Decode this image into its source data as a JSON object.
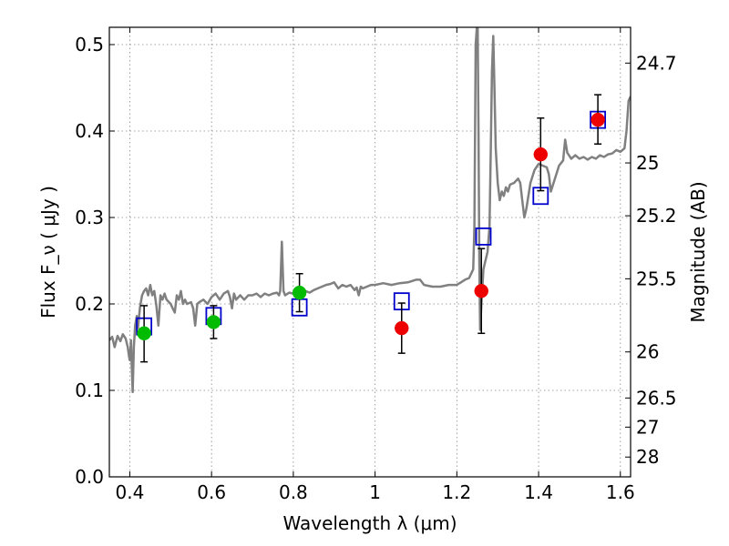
{
  "chart_data": {
    "type": "scatter",
    "xlabel": "Wavelength  λ (μm)",
    "ylabel": "Flux  F_ν  ( μJy )",
    "ylabel_right": "Magnitude (AB)",
    "xlim": [
      0.35,
      1.625
    ],
    "ylim": [
      0.0,
      0.52
    ],
    "grid": true,
    "x_ticks": [
      {
        "value": 0.4,
        "label": "0.4"
      },
      {
        "value": 0.6,
        "label": "0.6"
      },
      {
        "value": 0.8,
        "label": "0.8"
      },
      {
        "value": 1.0,
        "label": "1"
      },
      {
        "value": 1.2,
        "label": "1.2"
      },
      {
        "value": 1.4,
        "label": "1.4"
      },
      {
        "value": 1.6,
        "label": "1.6"
      }
    ],
    "y_ticks": [
      {
        "value": 0.0,
        "label": "0.0"
      },
      {
        "value": 0.1,
        "label": "0.1"
      },
      {
        "value": 0.2,
        "label": "0.2"
      },
      {
        "value": 0.3,
        "label": "0.3"
      },
      {
        "value": 0.4,
        "label": "0.4"
      },
      {
        "value": 0.5,
        "label": "0.5"
      }
    ],
    "right_ticks": [
      {
        "flux": 0.4786,
        "label": "24.7"
      },
      {
        "flux": 0.3631,
        "label": "25"
      },
      {
        "flux": 0.302,
        "label": "25.2"
      },
      {
        "flux": 0.2291,
        "label": "25.5"
      },
      {
        "flux": 0.1445,
        "label": "26"
      },
      {
        "flux": 0.0912,
        "label": "26.5"
      },
      {
        "flux": 0.0575,
        "label": "27"
      },
      {
        "flux": 0.0229,
        "label": "28"
      }
    ],
    "series": [
      {
        "kind": "line",
        "color": "#808080",
        "points": [
          [
            0.35,
            0.158
          ],
          [
            0.357,
            0.162
          ],
          [
            0.363,
            0.15
          ],
          [
            0.37,
            0.163
          ],
          [
            0.377,
            0.157
          ],
          [
            0.383,
            0.165
          ],
          [
            0.39,
            0.16
          ],
          [
            0.395,
            0.15
          ],
          [
            0.398,
            0.14
          ],
          [
            0.4,
            0.135
          ],
          [
            0.403,
            0.158
          ],
          [
            0.405,
            0.125
          ],
          [
            0.407,
            0.098
          ],
          [
            0.41,
            0.15
          ],
          [
            0.413,
            0.175
          ],
          [
            0.417,
            0.186
          ],
          [
            0.42,
            0.172
          ],
          [
            0.425,
            0.196
          ],
          [
            0.43,
            0.21
          ],
          [
            0.435,
            0.215
          ],
          [
            0.44,
            0.218
          ],
          [
            0.445,
            0.21
          ],
          [
            0.45,
            0.222
          ],
          [
            0.455,
            0.21
          ],
          [
            0.46,
            0.215
          ],
          [
            0.465,
            0.198
          ],
          [
            0.47,
            0.175
          ],
          [
            0.475,
            0.21
          ],
          [
            0.48,
            0.205
          ],
          [
            0.485,
            0.212
          ],
          [
            0.49,
            0.205
          ],
          [
            0.5,
            0.2
          ],
          [
            0.505,
            0.195
          ],
          [
            0.51,
            0.19
          ],
          [
            0.515,
            0.21
          ],
          [
            0.52,
            0.205
          ],
          [
            0.525,
            0.215
          ],
          [
            0.53,
            0.2
          ],
          [
            0.535,
            0.205
          ],
          [
            0.54,
            0.2
          ],
          [
            0.55,
            0.202
          ],
          [
            0.555,
            0.195
          ],
          [
            0.56,
            0.175
          ],
          [
            0.565,
            0.2
          ],
          [
            0.57,
            0.202
          ],
          [
            0.58,
            0.205
          ],
          [
            0.59,
            0.2
          ],
          [
            0.6,
            0.208
          ],
          [
            0.61,
            0.212
          ],
          [
            0.62,
            0.205
          ],
          [
            0.63,
            0.212
          ],
          [
            0.64,
            0.215
          ],
          [
            0.645,
            0.208
          ],
          [
            0.65,
            0.195
          ],
          [
            0.655,
            0.212
          ],
          [
            0.66,
            0.205
          ],
          [
            0.67,
            0.21
          ],
          [
            0.68,
            0.205
          ],
          [
            0.69,
            0.21
          ],
          [
            0.7,
            0.21
          ],
          [
            0.71,
            0.212
          ],
          [
            0.72,
            0.208
          ],
          [
            0.73,
            0.212
          ],
          [
            0.74,
            0.21
          ],
          [
            0.75,
            0.212
          ],
          [
            0.76,
            0.213
          ],
          [
            0.765,
            0.21
          ],
          [
            0.768,
            0.215
          ],
          [
            0.772,
            0.272
          ],
          [
            0.776,
            0.215
          ],
          [
            0.78,
            0.21
          ],
          [
            0.79,
            0.213
          ],
          [
            0.8,
            0.212
          ],
          [
            0.81,
            0.213
          ],
          [
            0.82,
            0.214
          ],
          [
            0.83,
            0.215
          ],
          [
            0.84,
            0.213
          ],
          [
            0.85,
            0.216
          ],
          [
            0.86,
            0.218
          ],
          [
            0.87,
            0.22
          ],
          [
            0.88,
            0.222
          ],
          [
            0.89,
            0.223
          ],
          [
            0.9,
            0.225
          ],
          [
            0.91,
            0.218
          ],
          [
            0.92,
            0.222
          ],
          [
            0.93,
            0.22
          ],
          [
            0.94,
            0.222
          ],
          [
            0.95,
            0.216
          ],
          [
            0.955,
            0.219
          ],
          [
            0.96,
            0.21
          ],
          [
            0.965,
            0.22
          ],
          [
            0.97,
            0.218
          ],
          [
            0.98,
            0.22
          ],
          [
            0.99,
            0.222
          ],
          [
            1.0,
            0.222
          ],
          [
            1.02,
            0.224
          ],
          [
            1.04,
            0.222
          ],
          [
            1.06,
            0.224
          ],
          [
            1.08,
            0.225
          ],
          [
            1.1,
            0.228
          ],
          [
            1.11,
            0.228
          ],
          [
            1.12,
            0.222
          ],
          [
            1.14,
            0.22
          ],
          [
            1.16,
            0.22
          ],
          [
            1.18,
            0.222
          ],
          [
            1.2,
            0.222
          ],
          [
            1.21,
            0.225
          ],
          [
            1.22,
            0.228
          ],
          [
            1.23,
            0.23
          ],
          [
            1.235,
            0.235
          ],
          [
            1.24,
            0.24
          ],
          [
            1.243,
            0.29
          ],
          [
            1.246,
            0.5
          ],
          [
            1.249,
            0.52
          ],
          [
            1.251,
            0.52
          ],
          [
            1.253,
            0.4
          ],
          [
            1.255,
            0.25
          ],
          [
            1.257,
            0.17
          ],
          [
            1.26,
            0.2
          ],
          [
            1.265,
            0.24
          ],
          [
            1.27,
            0.25
          ],
          [
            1.275,
            0.26
          ],
          [
            1.28,
            0.29
          ],
          [
            1.283,
            0.38
          ],
          [
            1.286,
            0.47
          ],
          [
            1.289,
            0.51
          ],
          [
            1.292,
            0.45
          ],
          [
            1.295,
            0.38
          ],
          [
            1.3,
            0.34
          ],
          [
            1.305,
            0.32
          ],
          [
            1.31,
            0.33
          ],
          [
            1.315,
            0.325
          ],
          [
            1.32,
            0.335
          ],
          [
            1.325,
            0.33
          ],
          [
            1.33,
            0.338
          ],
          [
            1.34,
            0.34
          ],
          [
            1.35,
            0.345
          ],
          [
            1.355,
            0.34
          ],
          [
            1.36,
            0.32
          ],
          [
            1.365,
            0.3
          ],
          [
            1.37,
            0.31
          ],
          [
            1.38,
            0.34
          ],
          [
            1.39,
            0.355
          ],
          [
            1.4,
            0.362
          ],
          [
            1.41,
            0.36
          ],
          [
            1.42,
            0.358
          ],
          [
            1.425,
            0.35
          ],
          [
            1.43,
            0.33
          ],
          [
            1.44,
            0.345
          ],
          [
            1.45,
            0.36
          ],
          [
            1.46,
            0.366
          ],
          [
            1.465,
            0.39
          ],
          [
            1.47,
            0.375
          ],
          [
            1.48,
            0.368
          ],
          [
            1.49,
            0.372
          ],
          [
            1.5,
            0.368
          ],
          [
            1.51,
            0.37
          ],
          [
            1.52,
            0.367
          ],
          [
            1.53,
            0.37
          ],
          [
            1.54,
            0.368
          ],
          [
            1.55,
            0.372
          ],
          [
            1.56,
            0.37
          ],
          [
            1.57,
            0.373
          ],
          [
            1.58,
            0.374
          ],
          [
            1.59,
            0.378
          ],
          [
            1.6,
            0.376
          ],
          [
            1.61,
            0.38
          ],
          [
            1.615,
            0.4
          ],
          [
            1.62,
            0.435
          ],
          [
            1.625,
            0.44
          ]
        ]
      },
      {
        "kind": "open-square",
        "color": "#0000cc",
        "points": [
          [
            0.435,
            0.174
          ],
          [
            0.605,
            0.186
          ],
          [
            0.815,
            0.196
          ],
          [
            1.065,
            0.203
          ],
          [
            1.265,
            0.278
          ],
          [
            1.405,
            0.325
          ],
          [
            1.545,
            0.413
          ]
        ]
      },
      {
        "kind": "filled-circle",
        "color": "#00bb00",
        "points": [
          {
            "x": 0.435,
            "y": 0.166,
            "err_low": 0.133,
            "err_high": 0.198
          },
          {
            "x": 0.605,
            "y": 0.179,
            "err_low": 0.16,
            "err_high": 0.198
          },
          {
            "x": 0.815,
            "y": 0.213,
            "err_low": 0.191,
            "err_high": 0.235
          }
        ]
      },
      {
        "kind": "filled-circle",
        "color": "#ee0000",
        "points": [
          {
            "x": 1.065,
            "y": 0.172,
            "err_low": 0.143,
            "err_high": 0.201
          },
          {
            "x": 1.26,
            "y": 0.215,
            "err_low": 0.166,
            "err_high": 0.264
          },
          {
            "x": 1.405,
            "y": 0.373,
            "err_low": 0.331,
            "err_high": 0.415
          },
          {
            "x": 1.545,
            "y": 0.413,
            "err_low": 0.385,
            "err_high": 0.442
          }
        ]
      }
    ]
  }
}
